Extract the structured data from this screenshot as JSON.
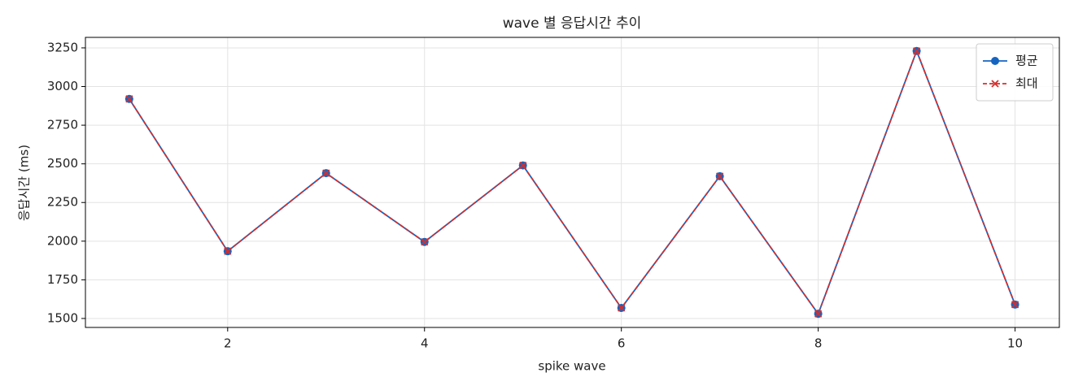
{
  "chart_data": {
    "type": "line",
    "title": "wave 별 응답시간 추이",
    "x_label": "spike wave",
    "y_label": "응답시간 (ms)",
    "x": [
      1,
      2,
      3,
      4,
      5,
      6,
      7,
      8,
      9,
      10
    ],
    "series": [
      {
        "name": "평균",
        "color": "#1565c0",
        "marker": "circle",
        "dash": false,
        "values": [
          2920,
          1935,
          2440,
          1995,
          2490,
          1568,
          2420,
          1530,
          3230,
          1590
        ]
      },
      {
        "name": "최대",
        "color": "#d32f2f",
        "marker": "x",
        "dash": true,
        "values": [
          2920,
          1935,
          2440,
          1995,
          2490,
          1568,
          2420,
          1530,
          3230,
          1590
        ]
      }
    ],
    "xlim": [
      0.555,
      10.45
    ],
    "ylim": [
      1442,
      3318
    ],
    "xticks": [
      2,
      4,
      6,
      8,
      10
    ],
    "yticks": [
      1500,
      1750,
      2000,
      2250,
      2500,
      2750,
      3000,
      3250
    ],
    "grid": true,
    "legend": "upper-right"
  }
}
